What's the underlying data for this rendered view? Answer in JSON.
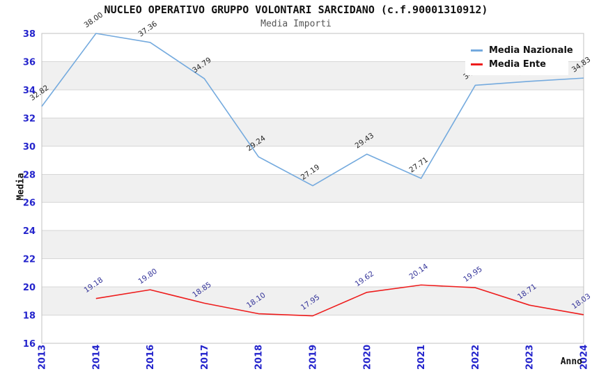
{
  "title": "NUCLEO OPERATIVO GRUPPO VOLONTARI SARCIDANO (c.f.90001310912)",
  "subtitle": "Media Importi",
  "legend": {
    "items": [
      {
        "label": "Media Nazionale",
        "color": "#74aade"
      },
      {
        "label": "Media Ente",
        "color": "#ee1c1c"
      }
    ]
  },
  "axes": {
    "x_label": "Anno",
    "y_label": "Media",
    "y_ticks": [
      16,
      18,
      20,
      22,
      24,
      26,
      28,
      30,
      32,
      34,
      36,
      38
    ],
    "tick_color": "#2424cc"
  },
  "chart_data": {
    "type": "line",
    "title": "Media Importi",
    "xlabel": "Anno",
    "ylabel": "Media",
    "ylim": [
      16,
      38
    ],
    "grid": true,
    "legend_position": "top-right",
    "band_color": "#f0f0f0",
    "grid_color": "#d6d6d6",
    "border_color": "#c0c0c0",
    "categories": [
      "2013",
      "2014",
      "2016",
      "2017",
      "2018",
      "2019",
      "2020",
      "2021",
      "2022",
      "2023",
      "2024"
    ],
    "series": [
      {
        "name": "Media Nazionale",
        "color": "#74aade",
        "label_color": "#262626",
        "values": [
          32.82,
          38.0,
          37.36,
          34.79,
          29.24,
          27.19,
          29.43,
          27.71,
          34.32,
          34.6,
          34.83
        ]
      },
      {
        "name": "Media Ente",
        "color": "#ee1c1c",
        "label_color": "#333399",
        "values": [
          null,
          19.18,
          19.8,
          18.85,
          18.1,
          17.95,
          19.62,
          20.14,
          19.95,
          18.71,
          18.03
        ]
      }
    ]
  }
}
